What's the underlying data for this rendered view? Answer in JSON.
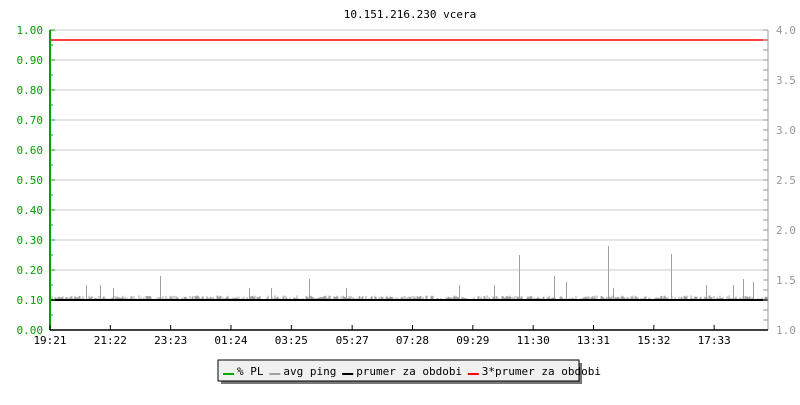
{
  "chart_data": {
    "type": "line",
    "title": "10.151.216.230 vcera",
    "x_ticks": [
      "19:21",
      "21:22",
      "23:23",
      "01:24",
      "03:25",
      "05:27",
      "07:28",
      "09:29",
      "11:30",
      "13:31",
      "15:32",
      "17:33"
    ],
    "x_range": [
      "19:21",
      "19:21 (+24h)"
    ],
    "y_left": {
      "range": [
        0,
        1
      ],
      "ticks": [
        "0.00",
        "0.10",
        "0.20",
        "0.30",
        "0.40",
        "0.50",
        "0.60",
        "0.70",
        "0.80",
        "0.90",
        "1.00"
      ],
      "color": "#00a000"
    },
    "y_right": {
      "range": [
        1,
        4
      ],
      "ticks": [
        "1.0",
        "1.5",
        "2.0",
        "2.5",
        "3.0",
        "3.5",
        "4.0"
      ],
      "color": "#999999"
    },
    "grid": true,
    "legend_position": "bottom",
    "series": [
      {
        "name": "% PL",
        "color": "#00aa00",
        "axis": "left",
        "value": 0
      },
      {
        "name": "avg ping",
        "color": "#a0a0a0",
        "axis": "right",
        "baseline": 1.32,
        "spikes": [
          [
            "20:33",
            1.45
          ],
          [
            "21:01",
            1.45
          ],
          [
            "21:27",
            1.42
          ],
          [
            "23:01",
            1.54
          ],
          [
            "02:01",
            1.42
          ],
          [
            "02:45",
            1.42
          ],
          [
            "04:01",
            1.51
          ],
          [
            "05:15",
            1.42
          ],
          [
            "09:01",
            1.45
          ],
          [
            "10:11",
            1.45
          ],
          [
            "11:01",
            1.75
          ],
          [
            "12:11",
            1.54
          ],
          [
            "12:35",
            1.48
          ],
          [
            "14:01",
            1.84
          ],
          [
            "14:11",
            1.42
          ],
          [
            "16:07",
            1.76
          ],
          [
            "17:17",
            1.45
          ],
          [
            "18:11",
            1.45
          ],
          [
            "18:31",
            1.51
          ],
          [
            "18:51",
            1.48
          ]
        ]
      },
      {
        "name": "prumer za obdobi",
        "color": "#000000",
        "axis": "right",
        "value": 1.3
      },
      {
        "name": "3*prumer za obdobi",
        "color": "#ff0000",
        "axis": "right",
        "value": 3.9
      }
    ]
  }
}
